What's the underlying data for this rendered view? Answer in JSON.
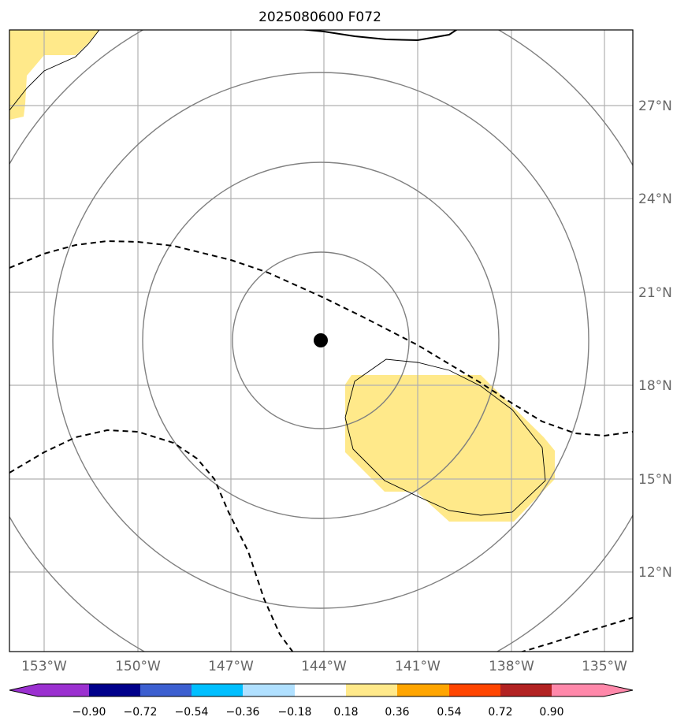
{
  "title": "2025080600 F072",
  "map": {
    "longitude_labels": [
      "153°W",
      "150°W",
      "147°W",
      "144°W",
      "141°W",
      "138°W",
      "135°W"
    ],
    "latitude_labels": [
      "27°N",
      "24°N",
      "21°N",
      "18°N",
      "15°N",
      "12°N"
    ],
    "storm_center": {
      "lon": -144.1,
      "lat": 19.5
    },
    "colors": {
      "frame": "#000000",
      "grid": "#b0b0b0",
      "circles": "#808080",
      "contours": "#000000",
      "fill_positive": "#ffe98a",
      "center_marker": "#000000"
    }
  },
  "colorbar": {
    "tick_labels": [
      "−0.90",
      "−0.72",
      "−0.54",
      "−0.36",
      "−0.18",
      "0.18",
      "0.36",
      "0.54",
      "0.72",
      "0.90"
    ],
    "colors": [
      "#9b30d0",
      "#00008b",
      "#3c5fd0",
      "#00bfff",
      "#b0e0ff",
      "#ffffff",
      "#ffe98a",
      "#ffa500",
      "#ff4500",
      "#b22222",
      "#ff88aa"
    ]
  }
}
